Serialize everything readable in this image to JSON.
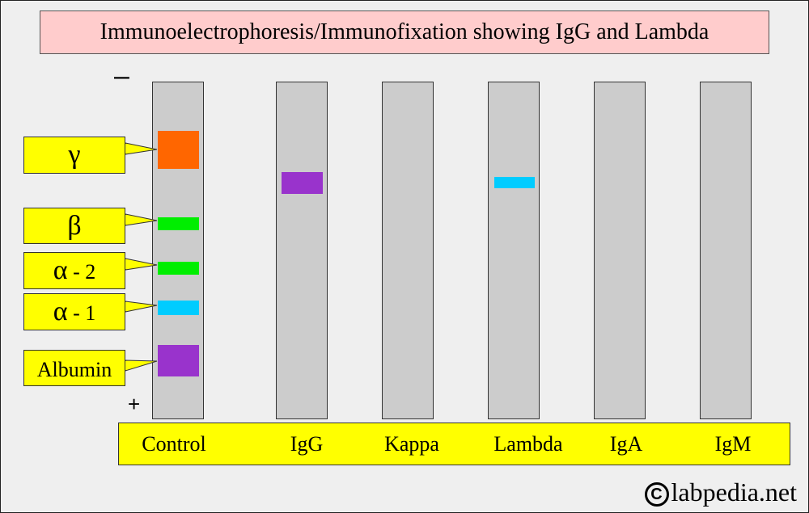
{
  "title": "Immunoelectrophoresis/Immunofixation showing IgG and Lambda",
  "poles": {
    "negative": "–",
    "positive": "+"
  },
  "control_bands": [
    {
      "fraction": "gamma",
      "color": "#ff6600"
    },
    {
      "fraction": "beta",
      "color": "#00ee00"
    },
    {
      "fraction": "alpha-2",
      "color": "#00ee00"
    },
    {
      "fraction": "alpha-1",
      "color": "#00ccff"
    },
    {
      "fraction": "albumin",
      "color": "#9933cc"
    }
  ],
  "callouts": [
    {
      "greek": "γ",
      "suffix": ""
    },
    {
      "greek": "β",
      "suffix": ""
    },
    {
      "greek": "α",
      "suffix": " - 2"
    },
    {
      "greek": "α",
      "suffix": " - 1"
    },
    {
      "greek": "",
      "suffix": "Albumin"
    }
  ],
  "lanes": [
    {
      "label": "Control"
    },
    {
      "label": "IgG",
      "band": {
        "color": "#9933cc",
        "aligned_with": "gamma"
      }
    },
    {
      "label": "Kappa"
    },
    {
      "label": "Lambda",
      "band": {
        "color": "#00ccff",
        "aligned_with": "gamma"
      }
    },
    {
      "label": "IgA"
    },
    {
      "label": "IgM"
    }
  ],
  "colors": {
    "lane_fill": "#cccccc",
    "title_fill": "#ffcccc",
    "label_fill": "#ffff00",
    "background": "#efefef"
  },
  "credit": {
    "symbol": "C",
    "text": "labpedia.net"
  }
}
